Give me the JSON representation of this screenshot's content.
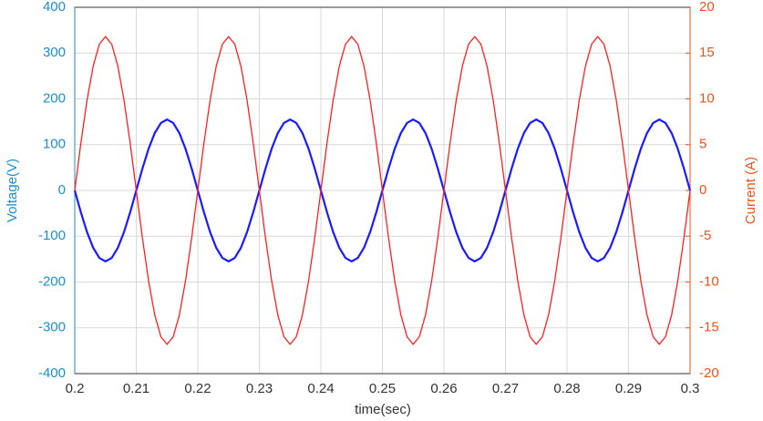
{
  "chart_data": {
    "type": "line",
    "xlabel": "time(sec)",
    "ylabel": "Voltage(V)",
    "y2label": "Current (A)",
    "xlim": [
      0.2,
      0.3
    ],
    "xticks": [
      0.2,
      0.21,
      0.22,
      0.23,
      0.24,
      0.25,
      0.26,
      0.27,
      0.28,
      0.29,
      0.3
    ],
    "ylim": [
      -400,
      400
    ],
    "yticks": [
      -400,
      -300,
      -200,
      -100,
      0,
      100,
      200,
      300,
      400
    ],
    "y2lim": [
      -20,
      20
    ],
    "y2ticks": [
      -20,
      -15,
      -10,
      -5,
      0,
      5,
      10,
      15,
      20
    ],
    "ycolor": "#1a8fd0",
    "y2color": "#e8541e",
    "grid": true,
    "x": [
      0.2,
      0.201,
      0.202,
      0.203,
      0.204,
      0.205,
      0.206,
      0.207,
      0.208,
      0.209,
      0.21,
      0.211,
      0.212,
      0.213,
      0.214,
      0.215,
      0.216,
      0.217,
      0.218,
      0.219,
      0.22,
      0.221,
      0.222,
      0.223,
      0.224,
      0.225,
      0.226,
      0.227,
      0.228,
      0.229,
      0.23,
      0.231,
      0.232,
      0.233,
      0.234,
      0.235,
      0.236,
      0.237,
      0.238,
      0.239,
      0.24,
      0.241,
      0.242,
      0.243,
      0.244,
      0.245,
      0.246,
      0.247,
      0.248,
      0.249,
      0.25,
      0.251,
      0.252,
      0.253,
      0.254,
      0.255,
      0.256,
      0.257,
      0.258,
      0.259,
      0.26,
      0.261,
      0.262,
      0.263,
      0.264,
      0.265,
      0.266,
      0.267,
      0.268,
      0.269,
      0.27,
      0.271,
      0.272,
      0.273,
      0.274,
      0.275,
      0.276,
      0.277,
      0.278,
      0.279,
      0.28,
      0.281,
      0.282,
      0.283,
      0.284,
      0.285,
      0.286,
      0.287,
      0.288,
      0.289,
      0.29,
      0.291,
      0.292,
      0.293,
      0.294,
      0.295,
      0.296,
      0.297,
      0.298,
      0.299,
      0.3
    ],
    "series": [
      {
        "color": "#1a1aff",
        "axis": "y",
        "values": [
          0,
          -47.9,
          -91.1,
          -125.4,
          -147.4,
          -155,
          -147.4,
          -125.4,
          -91.1,
          -47.9,
          0,
          47.9,
          91.1,
          125.4,
          147.4,
          155,
          147.4,
          125.4,
          91.1,
          47.9,
          0,
          -47.9,
          -91.1,
          -125.4,
          -147.4,
          -155,
          -147.4,
          -125.4,
          -91.1,
          -47.9,
          0,
          47.9,
          91.1,
          125.4,
          147.4,
          155,
          147.4,
          125.4,
          91.1,
          47.9,
          0,
          -47.9,
          -91.1,
          -125.4,
          -147.4,
          -155,
          -147.4,
          -125.4,
          -91.1,
          -47.9,
          0,
          47.9,
          91.1,
          125.4,
          147.4,
          155,
          147.4,
          125.4,
          91.1,
          47.9,
          0,
          -47.9,
          -91.1,
          -125.4,
          -147.4,
          -155,
          -147.4,
          -125.4,
          -91.1,
          -47.9,
          0,
          47.9,
          91.1,
          125.4,
          147.4,
          155,
          147.4,
          125.4,
          91.1,
          47.9,
          0,
          -47.9,
          -91.1,
          -125.4,
          -147.4,
          -155,
          -147.4,
          -125.4,
          -91.1,
          -47.9,
          0,
          47.9,
          91.1,
          125.4,
          147.4,
          155,
          147.4,
          125.4,
          91.1,
          47.9,
          0
        ]
      },
      {
        "color": "#ff2020",
        "axis": "y2",
        "values": [
          0,
          5.19,
          9.88,
          13.59,
          15.98,
          16.8,
          15.98,
          13.59,
          9.88,
          5.19,
          0,
          -5.19,
          -9.88,
          -13.59,
          -15.98,
          -16.8,
          -15.98,
          -13.59,
          -9.88,
          -5.19,
          0,
          5.19,
          9.88,
          13.59,
          15.98,
          16.8,
          15.98,
          13.59,
          9.88,
          5.19,
          0,
          -5.19,
          -9.88,
          -13.59,
          -15.98,
          -16.8,
          -15.98,
          -13.59,
          -9.88,
          -5.19,
          0,
          5.19,
          9.88,
          13.59,
          15.98,
          16.8,
          15.98,
          13.59,
          9.88,
          5.19,
          0,
          -5.19,
          -9.88,
          -13.59,
          -15.98,
          -16.8,
          -15.98,
          -13.59,
          -9.88,
          -5.19,
          0,
          5.19,
          9.88,
          13.59,
          15.98,
          16.8,
          15.98,
          13.59,
          9.88,
          5.19,
          0,
          -5.19,
          -9.88,
          -13.59,
          -15.98,
          -16.8,
          -15.98,
          -13.59,
          -9.88,
          -5.19,
          0,
          5.19,
          9.88,
          13.59,
          15.98,
          16.8,
          15.98,
          13.59,
          9.88,
          5.19,
          0,
          -5.19,
          -9.88,
          -13.59,
          -15.98,
          -16.8,
          -15.98,
          -13.59,
          -9.88,
          -5.19,
          0
        ]
      }
    ]
  }
}
